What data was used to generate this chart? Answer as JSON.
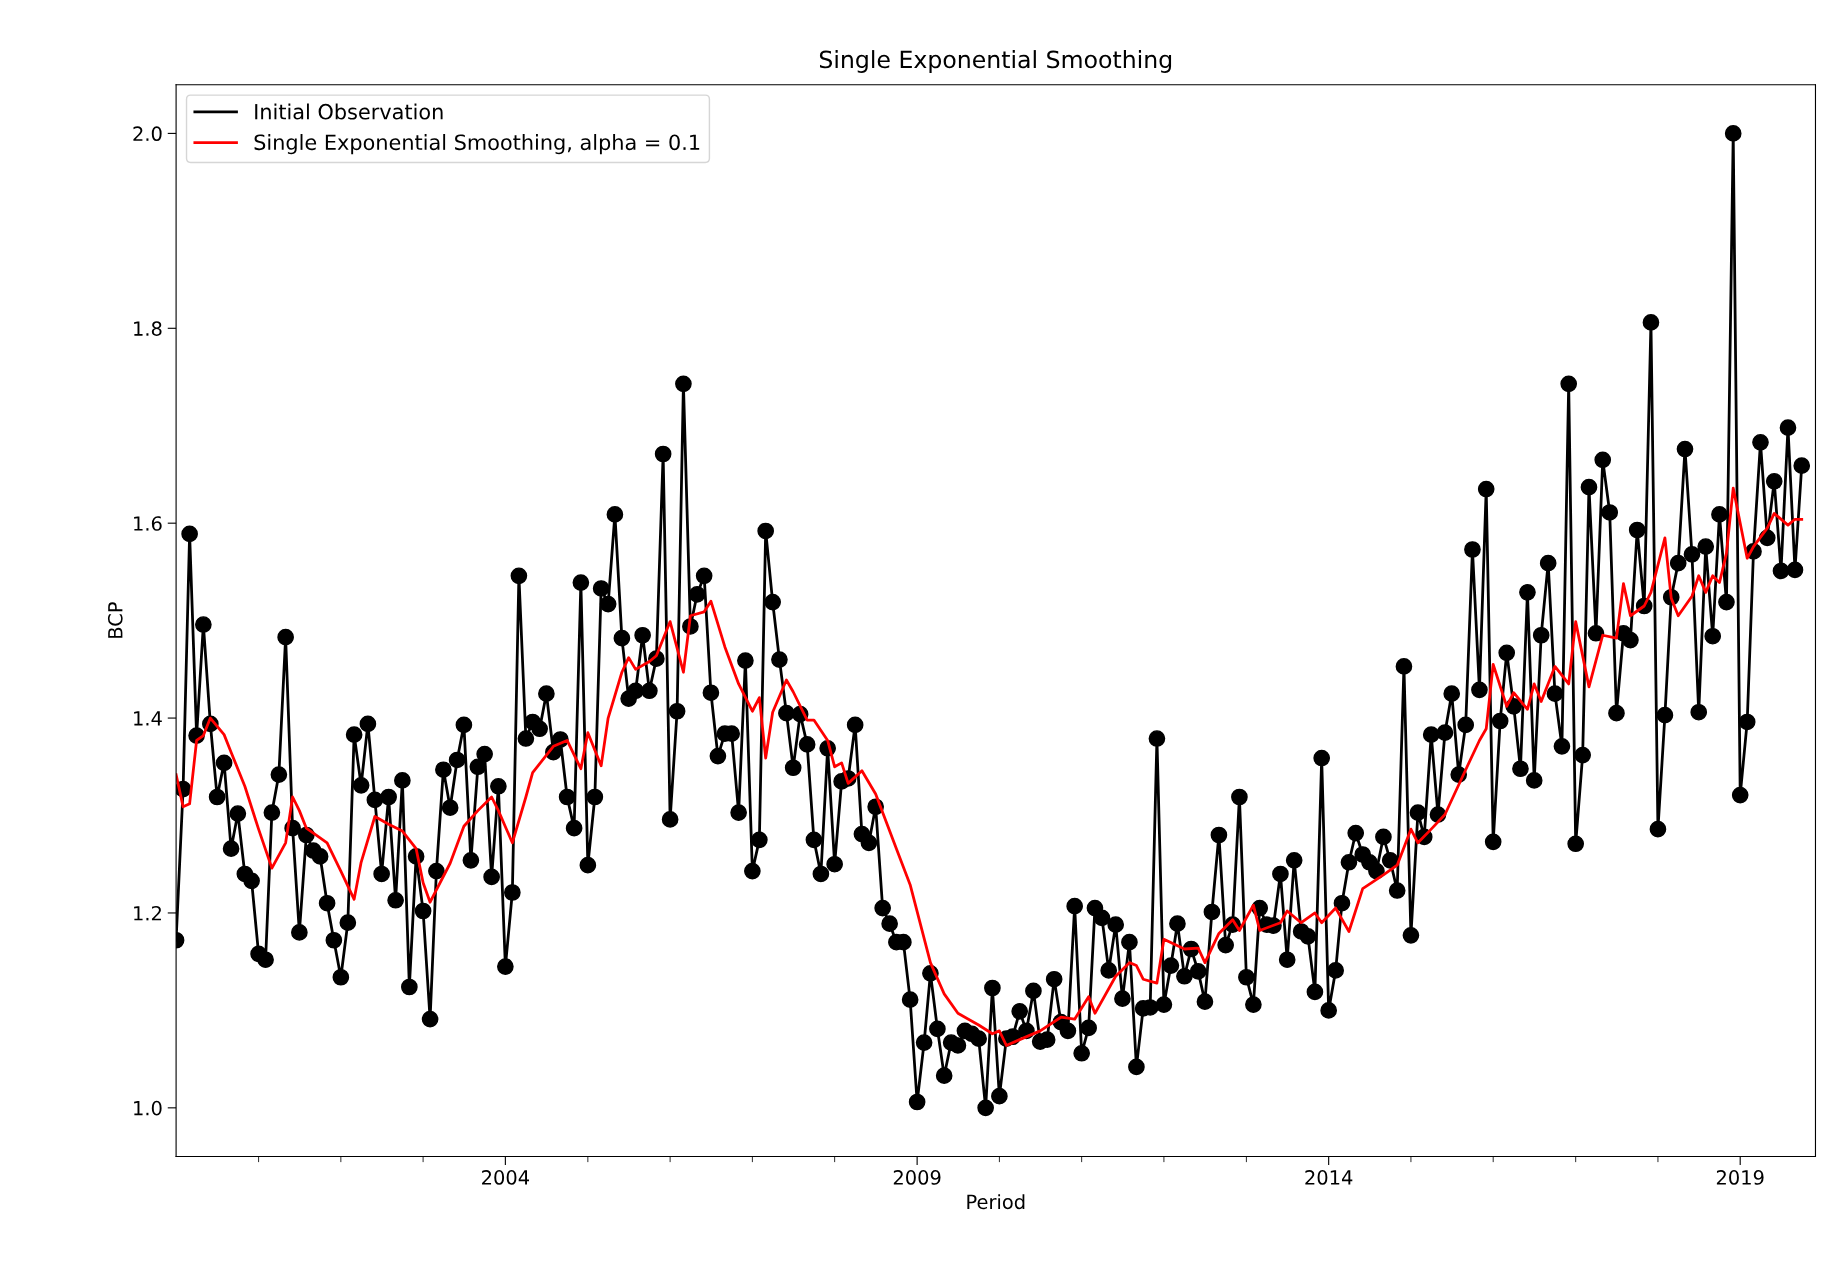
{
  "chart_data": {
    "type": "line",
    "title": "Single Exponential Smoothing",
    "xlabel": "Period",
    "ylabel": "BCP",
    "xlim": [
      "2000-01",
      "2019-12"
    ],
    "ylim": [
      0.95,
      2.05
    ],
    "yticks": [
      {
        "value": 1.0,
        "label": "1.0"
      },
      {
        "value": 1.2,
        "label": "1.2"
      },
      {
        "value": 1.4,
        "label": "1.4"
      },
      {
        "value": 1.6,
        "label": "1.6"
      },
      {
        "value": 1.8,
        "label": "1.8"
      },
      {
        "value": 2.0,
        "label": "2.0"
      }
    ],
    "xticks": [
      {
        "value": "2001-01",
        "label": null
      },
      {
        "value": "2002-01",
        "label": null
      },
      {
        "value": "2003-01",
        "label": null
      },
      {
        "value": "2004-01",
        "label": "2004"
      },
      {
        "value": "2005-01",
        "label": null
      },
      {
        "value": "2006-01",
        "label": null
      },
      {
        "value": "2007-01",
        "label": null
      },
      {
        "value": "2008-01",
        "label": null
      },
      {
        "value": "2009-01",
        "label": "2009"
      },
      {
        "value": "2010-01",
        "label": null
      },
      {
        "value": "2011-01",
        "label": null
      },
      {
        "value": "2012-01",
        "label": null
      },
      {
        "value": "2013-01",
        "label": null
      },
      {
        "value": "2014-01",
        "label": "2014"
      },
      {
        "value": "2015-01",
        "label": null
      },
      {
        "value": "2016-01",
        "label": null
      },
      {
        "value": "2017-01",
        "label": null
      },
      {
        "value": "2018-01",
        "label": null
      },
      {
        "value": "2019-01",
        "label": "2019"
      }
    ],
    "grid": false,
    "legend": "top left",
    "series": [
      {
        "name": "Initial Observation",
        "color": "#000000",
        "marker": "circle",
        "x": [
          "2000-01",
          "2000-02",
          "2000-03",
          "2000-04",
          "2000-05",
          "2000-06",
          "2000-07",
          "2000-08",
          "2000-09",
          "2000-10",
          "2000-11",
          "2000-12",
          "2001-01",
          "2001-02",
          "2001-03",
          "2001-04",
          "2001-05",
          "2001-06",
          "2001-07",
          "2001-08",
          "2001-09",
          "2001-10",
          "2001-11",
          "2001-12",
          "2002-01",
          "2002-02",
          "2002-03",
          "2002-04",
          "2002-05",
          "2002-06",
          "2002-07",
          "2002-08",
          "2002-09",
          "2002-10",
          "2002-11",
          "2002-12",
          "2003-01",
          "2003-02",
          "2003-03",
          "2003-04",
          "2003-05",
          "2003-06",
          "2003-07",
          "2003-08",
          "2003-09",
          "2003-10",
          "2003-11",
          "2003-12",
          "2004-01",
          "2004-02",
          "2004-03",
          "2004-04",
          "2004-05",
          "2004-06",
          "2004-07",
          "2004-08",
          "2004-09",
          "2004-10",
          "2004-11",
          "2004-12",
          "2005-01",
          "2005-02",
          "2005-03",
          "2005-04",
          "2005-05",
          "2005-06",
          "2005-07",
          "2005-08",
          "2005-09",
          "2005-10",
          "2005-11",
          "2005-12",
          "2006-01",
          "2006-02",
          "2006-03",
          "2006-04",
          "2006-05",
          "2006-06",
          "2006-07",
          "2006-08",
          "2006-09",
          "2006-10",
          "2006-11",
          "2006-12",
          "2007-01",
          "2007-02",
          "2007-03",
          "2007-04",
          "2007-05",
          "2007-06",
          "2007-07",
          "2007-08",
          "2007-09",
          "2007-10",
          "2007-11",
          "2007-12",
          "2008-01",
          "2008-02",
          "2008-03",
          "2008-04",
          "2008-05",
          "2008-06",
          "2008-07",
          "2008-08",
          "2008-09",
          "2008-10",
          "2008-11",
          "2008-12",
          "2009-01",
          "2009-02",
          "2009-03",
          "2009-04",
          "2009-05",
          "2009-06",
          "2009-07",
          "2009-08",
          "2009-09",
          "2009-10",
          "2009-11",
          "2009-12",
          "2010-01",
          "2010-02",
          "2010-03",
          "2010-04",
          "2010-05",
          "2010-06",
          "2010-07",
          "2010-08",
          "2010-09",
          "2010-10",
          "2010-11",
          "2010-12",
          "2011-01",
          "2011-02",
          "2011-03",
          "2011-04",
          "2011-05",
          "2011-06",
          "2011-07",
          "2011-08",
          "2011-09",
          "2011-10",
          "2011-11",
          "2011-12",
          "2012-01",
          "2012-02",
          "2012-03",
          "2012-04",
          "2012-05",
          "2012-06",
          "2012-07",
          "2012-08",
          "2012-09",
          "2012-10",
          "2012-11",
          "2012-12",
          "2013-01",
          "2013-02",
          "2013-03",
          "2013-04",
          "2013-05",
          "2013-06",
          "2013-07",
          "2013-08",
          "2013-09",
          "2013-10",
          "2013-11",
          "2013-12",
          "2014-01",
          "2014-02",
          "2014-03",
          "2014-04",
          "2014-05",
          "2014-06",
          "2014-07",
          "2014-08",
          "2014-09",
          "2014-10",
          "2014-11",
          "2014-12",
          "2015-01",
          "2015-02",
          "2015-03",
          "2015-04",
          "2015-05",
          "2015-06",
          "2015-07",
          "2015-08",
          "2015-09",
          "2015-10",
          "2015-11",
          "2015-12",
          "2016-01",
          "2016-02",
          "2016-03",
          "2016-04",
          "2016-05",
          "2016-06",
          "2016-07",
          "2016-08",
          "2016-09",
          "2016-10",
          "2016-11",
          "2016-12",
          "2017-01",
          "2017-02",
          "2017-03",
          "2017-04",
          "2017-05",
          "2017-06",
          "2017-07",
          "2017-08",
          "2017-09",
          "2017-10",
          "2017-11",
          "2017-12",
          "2018-01",
          "2018-02",
          "2018-03",
          "2018-04",
          "2018-05",
          "2018-06",
          "2018-07",
          "2018-08",
          "2018-09",
          "2018-10",
          "2018-11",
          "2018-12",
          "2019-01",
          "2019-02",
          "2019-03",
          "2019-04",
          "2019-05",
          "2019-06",
          "2019-07",
          "2019-08",
          "2019-09",
          "2019-10"
        ],
        "values": [
          1.172,
          1.327,
          1.589,
          1.382,
          1.496,
          1.394,
          1.319,
          1.354,
          1.266,
          1.302,
          1.24,
          1.233,
          1.158,
          1.152,
          1.303,
          1.342,
          1.483,
          1.287,
          1.18,
          1.28,
          1.264,
          1.258,
          1.21,
          1.172,
          1.134,
          1.19,
          1.383,
          1.331,
          1.394,
          1.316,
          1.24,
          1.319,
          1.213,
          1.336,
          1.124,
          1.258,
          1.202,
          1.091,
          1.243,
          1.347,
          1.308,
          1.357,
          1.393,
          1.254,
          1.35,
          1.363,
          1.237,
          1.33,
          1.145,
          1.221,
          1.546,
          1.379,
          1.396,
          1.389,
          1.425,
          1.365,
          1.378,
          1.319,
          1.287,
          1.539,
          1.249,
          1.319,
          1.533,
          1.517,
          1.609,
          1.482,
          1.42,
          1.428,
          1.485,
          1.428,
          1.461,
          1.671,
          1.296,
          1.407,
          1.743,
          1.494,
          1.527,
          1.546,
          1.426,
          1.361,
          1.384,
          1.384,
          1.303,
          1.459,
          1.243,
          1.275,
          1.592,
          1.519,
          1.46,
          1.405,
          1.349,
          1.404,
          1.373,
          1.275,
          1.24,
          1.369,
          1.25,
          1.335,
          1.338,
          1.393,
          1.281,
          1.272,
          1.309,
          1.205,
          1.189,
          1.17,
          1.17,
          1.111,
          1.006,
          1.067,
          1.138,
          1.081,
          1.033,
          1.067,
          1.064,
          1.079,
          1.076,
          1.071,
          1.0,
          1.123,
          1.012,
          1.071,
          1.073,
          1.099,
          1.079,
          1.12,
          1.068,
          1.07,
          1.132,
          1.088,
          1.079,
          1.207,
          1.056,
          1.082,
          1.205,
          1.195,
          1.141,
          1.188,
          1.112,
          1.17,
          1.042,
          1.102,
          1.103,
          1.379,
          1.106,
          1.146,
          1.189,
          1.135,
          1.163,
          1.14,
          1.109,
          1.201,
          1.28,
          1.167,
          1.188,
          1.319,
          1.134,
          1.106,
          1.205,
          1.188,
          1.187,
          1.24,
          1.152,
          1.254,
          1.181,
          1.176,
          1.119,
          1.359,
          1.1,
          1.141,
          1.21,
          1.252,
          1.282,
          1.26,
          1.252,
          1.243,
          1.278,
          1.254,
          1.223,
          1.453,
          1.177,
          1.303,
          1.278,
          1.383,
          1.301,
          1.385,
          1.425,
          1.342,
          1.393,
          1.573,
          1.429,
          1.635,
          1.273,
          1.397,
          1.467,
          1.412,
          1.348,
          1.529,
          1.336,
          1.485,
          1.559,
          1.425,
          1.371,
          1.743,
          1.271,
          1.362,
          1.637,
          1.487,
          1.665,
          1.611,
          1.405,
          1.487,
          1.48,
          1.593,
          1.515,
          1.806,
          1.286,
          1.403,
          1.524,
          1.559,
          1.676,
          1.568,
          1.406,
          1.576,
          1.484,
          1.609,
          1.519,
          2.0,
          1.321,
          1.396,
          1.571,
          1.683,
          1.585,
          1.643,
          1.551,
          1.698,
          1.552,
          1.659
        ]
      },
      {
        "name": "Single Exponential Smoothing, alpha = 0.1",
        "color": "#ff0000",
        "x": [
          "2000-01",
          "2000-02",
          "2000-03",
          "2000-04",
          "2000-05",
          "2000-06",
          "2000-08",
          "2000-09",
          "2000-11",
          "2001-01",
          "2001-03",
          "2001-05",
          "2001-06",
          "2001-07",
          "2001-08",
          "2001-11",
          "2002-01",
          "2002-03",
          "2002-04",
          "2002-06",
          "2002-08",
          "2002-10",
          "2002-12",
          "2003-01",
          "2003-02",
          "2003-05",
          "2003-07",
          "2003-09",
          "2003-11",
          "2003-12",
          "2004-02",
          "2004-04",
          "2004-05",
          "2004-08",
          "2004-10",
          "2004-12",
          "2005-01",
          "2005-03",
          "2005-04",
          "2005-06",
          "2005-07",
          "2005-08",
          "2005-10",
          "2005-11",
          "2006-01",
          "2006-03",
          "2006-04",
          "2006-06",
          "2006-07",
          "2006-09",
          "2006-11",
          "2007-01",
          "2007-02",
          "2007-03",
          "2007-04",
          "2007-06",
          "2007-07",
          "2007-09",
          "2007-10",
          "2007-12",
          "2008-01",
          "2008-02",
          "2008-03",
          "2008-05",
          "2008-07",
          "2008-10",
          "2008-12",
          "2009-03",
          "2009-05",
          "2009-07",
          "2009-10",
          "2009-12",
          "2010-01",
          "2010-02",
          "2010-04",
          "2010-07",
          "2010-10",
          "2010-12",
          "2011-02",
          "2011-03",
          "2011-06",
          "2011-08",
          "2011-09",
          "2011-10",
          "2011-12",
          "2012-01",
          "2012-04",
          "2012-06",
          "2012-07",
          "2012-09",
          "2012-11",
          "2012-12",
          "2013-02",
          "2013-03",
          "2013-06",
          "2013-07",
          "2013-09",
          "2013-11",
          "2013-12",
          "2014-02",
          "2014-04",
          "2014-06",
          "2014-09",
          "2014-11",
          "2015-01",
          "2015-02",
          "2015-04",
          "2015-06",
          "2015-09",
          "2015-11",
          "2015-12",
          "2016-01",
          "2016-03",
          "2016-04",
          "2016-06",
          "2016-07",
          "2016-08",
          "2016-10",
          "2016-12",
          "2017-01",
          "2017-03",
          "2017-05",
          "2017-07",
          "2017-08",
          "2017-09",
          "2017-11",
          "2017-12",
          "2018-02",
          "2018-03",
          "2018-04",
          "2018-06",
          "2018-07",
          "2018-08",
          "2018-09",
          "2018-10",
          "2018-11",
          "2018-12",
          "2019-02",
          "2019-03",
          "2019-05",
          "2019-06",
          "2019-08",
          "2019-09",
          "2019-10"
        ],
        "values": [
          1.342,
          1.309,
          1.312,
          1.377,
          1.382,
          1.4,
          1.383,
          1.365,
          1.33,
          1.286,
          1.246,
          1.272,
          1.319,
          1.305,
          1.287,
          1.272,
          1.243,
          1.214,
          1.252,
          1.299,
          1.291,
          1.284,
          1.266,
          1.231,
          1.211,
          1.251,
          1.289,
          1.305,
          1.319,
          1.305,
          1.272,
          1.319,
          1.344,
          1.371,
          1.377,
          1.348,
          1.385,
          1.351,
          1.4,
          1.447,
          1.462,
          1.45,
          1.458,
          1.464,
          1.499,
          1.447,
          1.505,
          1.509,
          1.52,
          1.473,
          1.435,
          1.407,
          1.421,
          1.359,
          1.406,
          1.439,
          1.427,
          1.398,
          1.398,
          1.377,
          1.35,
          1.354,
          1.333,
          1.346,
          1.322,
          1.266,
          1.229,
          1.149,
          1.117,
          1.097,
          1.085,
          1.076,
          1.079,
          1.064,
          1.07,
          1.079,
          1.093,
          1.091,
          1.114,
          1.097,
          1.135,
          1.149,
          1.146,
          1.132,
          1.128,
          1.173,
          1.163,
          1.164,
          1.149,
          1.179,
          1.193,
          1.182,
          1.208,
          1.182,
          1.19,
          1.202,
          1.19,
          1.2,
          1.19,
          1.205,
          1.181,
          1.225,
          1.239,
          1.249,
          1.286,
          1.272,
          1.286,
          1.301,
          1.347,
          1.377,
          1.389,
          1.455,
          1.412,
          1.426,
          1.409,
          1.435,
          1.417,
          1.453,
          1.435,
          1.499,
          1.432,
          1.485,
          1.482,
          1.538,
          1.505,
          1.515,
          1.529,
          1.585,
          1.523,
          1.505,
          1.525,
          1.546,
          1.529,
          1.546,
          1.539,
          1.569,
          1.636,
          1.564,
          1.576,
          1.595,
          1.61,
          1.598,
          1.604,
          1.604
        ]
      }
    ]
  }
}
